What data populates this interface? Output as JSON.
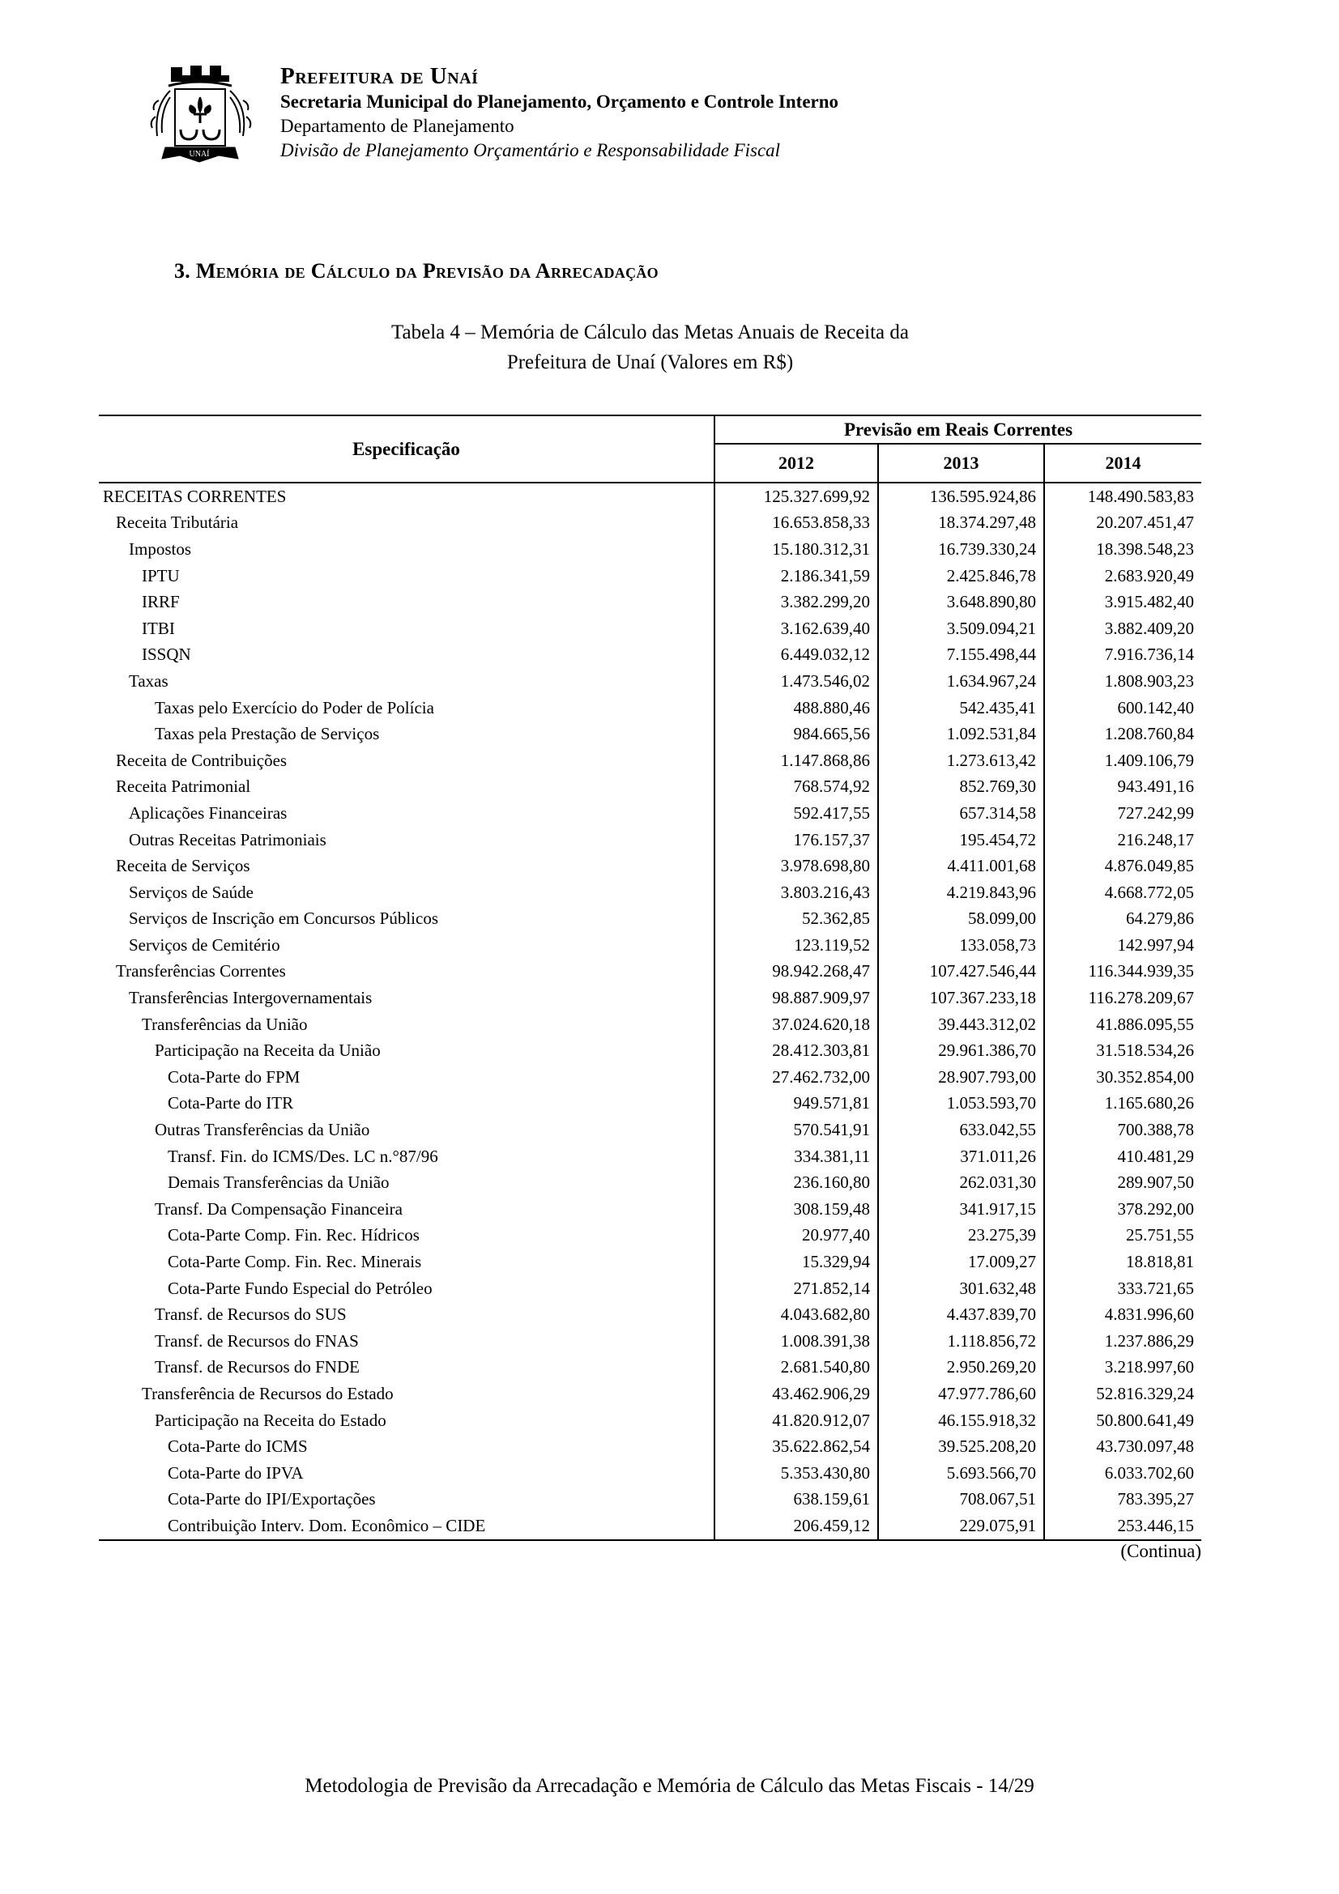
{
  "letterhead": {
    "org_name": "Prefeitura de Unaí",
    "line2": "Secretaria Municipal do Planejamento, Orçamento e Controle Interno",
    "line3": "Departamento de Planejamento",
    "line4": "Divisão de Planejamento Orçamentário e Responsabilidade Fiscal",
    "logo_banner_text": "UNAÍ"
  },
  "section_title": "3. Memória de Cálculo da Previsão da Arrecadação",
  "caption_line1": "Tabela 4 – Memória de Cálculo das Metas Anuais de Receita da",
  "caption_line2": "Prefeitura de Unaí (Valores em R$)",
  "table": {
    "col_header_spec": "Especificação",
    "col_group_header": "Previsão em Reais Correntes",
    "year_headers": [
      "2012",
      "2013",
      "2014"
    ],
    "rows": [
      {
        "label": "RECEITAS CORRENTES",
        "indent": 0,
        "values": [
          "125.327.699,92",
          "136.595.924,86",
          "148.490.583,83"
        ]
      },
      {
        "label": "Receita Tributária",
        "indent": 1,
        "values": [
          "16.653.858,33",
          "18.374.297,48",
          "20.207.451,47"
        ]
      },
      {
        "label": "Impostos",
        "indent": 2,
        "values": [
          "15.180.312,31",
          "16.739.330,24",
          "18.398.548,23"
        ]
      },
      {
        "label": "IPTU",
        "indent": 3,
        "values": [
          "2.186.341,59",
          "2.425.846,78",
          "2.683.920,49"
        ]
      },
      {
        "label": "IRRF",
        "indent": 3,
        "values": [
          "3.382.299,20",
          "3.648.890,80",
          "3.915.482,40"
        ]
      },
      {
        "label": "ITBI",
        "indent": 3,
        "values": [
          "3.162.639,40",
          "3.509.094,21",
          "3.882.409,20"
        ]
      },
      {
        "label": "ISSQN",
        "indent": 3,
        "values": [
          "6.449.032,12",
          "7.155.498,44",
          "7.916.736,14"
        ]
      },
      {
        "label": "Taxas",
        "indent": 2,
        "values": [
          "1.473.546,02",
          "1.634.967,24",
          "1.808.903,23"
        ]
      },
      {
        "label": "Taxas pelo Exercício do Poder de Polícia",
        "indent": 4,
        "values": [
          "488.880,46",
          "542.435,41",
          "600.142,40"
        ]
      },
      {
        "label": "Taxas pela Prestação de Serviços",
        "indent": 4,
        "values": [
          "984.665,56",
          "1.092.531,84",
          "1.208.760,84"
        ]
      },
      {
        "label": "Receita de Contribuições",
        "indent": 1,
        "values": [
          "1.147.868,86",
          "1.273.613,42",
          "1.409.106,79"
        ]
      },
      {
        "label": "Receita Patrimonial",
        "indent": 1,
        "values": [
          "768.574,92",
          "852.769,30",
          "943.491,16"
        ]
      },
      {
        "label": "Aplicações Financeiras",
        "indent": 2,
        "values": [
          "592.417,55",
          "657.314,58",
          "727.242,99"
        ]
      },
      {
        "label": "Outras Receitas Patrimoniais",
        "indent": 2,
        "values": [
          "176.157,37",
          "195.454,72",
          "216.248,17"
        ]
      },
      {
        "label": "Receita de Serviços",
        "indent": 1,
        "values": [
          "3.978.698,80",
          "4.411.001,68",
          "4.876.049,85"
        ]
      },
      {
        "label": "Serviços de Saúde",
        "indent": 2,
        "values": [
          "3.803.216,43",
          "4.219.843,96",
          "4.668.772,05"
        ]
      },
      {
        "label": "Serviços de Inscrição em Concursos Públicos",
        "indent": 2,
        "values": [
          "52.362,85",
          "58.099,00",
          "64.279,86"
        ]
      },
      {
        "label": "Serviços de Cemitério",
        "indent": 2,
        "values": [
          "123.119,52",
          "133.058,73",
          "142.997,94"
        ]
      },
      {
        "label": "Transferências Correntes",
        "indent": 1,
        "values": [
          "98.942.268,47",
          "107.427.546,44",
          "116.344.939,35"
        ]
      },
      {
        "label": "Transferências Intergovernamentais",
        "indent": 2,
        "values": [
          "98.887.909,97",
          "107.367.233,18",
          "116.278.209,67"
        ]
      },
      {
        "label": "Transferências da União",
        "indent": 3,
        "values": [
          "37.024.620,18",
          "39.443.312,02",
          "41.886.095,55"
        ]
      },
      {
        "label": "Participação na Receita da União",
        "indent": 4,
        "values": [
          "28.412.303,81",
          "29.961.386,70",
          "31.518.534,26"
        ]
      },
      {
        "label": "Cota-Parte do FPM",
        "indent": 5,
        "values": [
          "27.462.732,00",
          "28.907.793,00",
          "30.352.854,00"
        ]
      },
      {
        "label": "Cota-Parte do ITR",
        "indent": 5,
        "values": [
          "949.571,81",
          "1.053.593,70",
          "1.165.680,26"
        ]
      },
      {
        "label": "Outras Transferências da União",
        "indent": 4,
        "values": [
          "570.541,91",
          "633.042,55",
          "700.388,78"
        ]
      },
      {
        "label": "Transf. Fin. do ICMS/Des. LC n.°87/96",
        "indent": 5,
        "values": [
          "334.381,11",
          "371.011,26",
          "410.481,29"
        ]
      },
      {
        "label": "Demais Transferências da União",
        "indent": 5,
        "values": [
          "236.160,80",
          "262.031,30",
          "289.907,50"
        ]
      },
      {
        "label": "Transf. Da Compensação Financeira",
        "indent": 4,
        "values": [
          "308.159,48",
          "341.917,15",
          "378.292,00"
        ]
      },
      {
        "label": "Cota-Parte Comp. Fin. Rec. Hídricos",
        "indent": 5,
        "values": [
          "20.977,40",
          "23.275,39",
          "25.751,55"
        ]
      },
      {
        "label": "Cota-Parte Comp. Fin. Rec. Minerais",
        "indent": 5,
        "values": [
          "15.329,94",
          "17.009,27",
          "18.818,81"
        ]
      },
      {
        "label": "Cota-Parte Fundo Especial do Petróleo",
        "indent": 5,
        "values": [
          "271.852,14",
          "301.632,48",
          "333.721,65"
        ]
      },
      {
        "label": "Transf. de Recursos do SUS",
        "indent": 4,
        "values": [
          "4.043.682,80",
          "4.437.839,70",
          "4.831.996,60"
        ]
      },
      {
        "label": "Transf. de Recursos do FNAS",
        "indent": 4,
        "values": [
          "1.008.391,38",
          "1.118.856,72",
          "1.237.886,29"
        ]
      },
      {
        "label": "Transf. de Recursos do FNDE",
        "indent": 4,
        "values": [
          "2.681.540,80",
          "2.950.269,20",
          "3.218.997,60"
        ]
      },
      {
        "label": "Transferência de Recursos do Estado",
        "indent": 3,
        "values": [
          "43.462.906,29",
          "47.977.786,60",
          "52.816.329,24"
        ]
      },
      {
        "label": "Participação na Receita do Estado",
        "indent": 4,
        "values": [
          "41.820.912,07",
          "46.155.918,32",
          "50.800.641,49"
        ]
      },
      {
        "label": "Cota-Parte do ICMS",
        "indent": 5,
        "values": [
          "35.622.862,54",
          "39.525.208,20",
          "43.730.097,48"
        ]
      },
      {
        "label": "Cota-Parte do IPVA",
        "indent": 5,
        "values": [
          "5.353.430,80",
          "5.693.566,70",
          "6.033.702,60"
        ]
      },
      {
        "label": "Cota-Parte do IPI/Exportações",
        "indent": 5,
        "values": [
          "638.159,61",
          "708.067,51",
          "783.395,27"
        ]
      },
      {
        "label": "Contribuição Interv. Dom. Econômico – CIDE",
        "indent": 5,
        "values": [
          "206.459,12",
          "229.075,91",
          "253.446,15"
        ]
      }
    ]
  },
  "continua_note": "(Continua)",
  "footer_text": "Metodologia de Previsão da Arrecadação e Memória de Cálculo das Metas Fiscais - 14/29"
}
